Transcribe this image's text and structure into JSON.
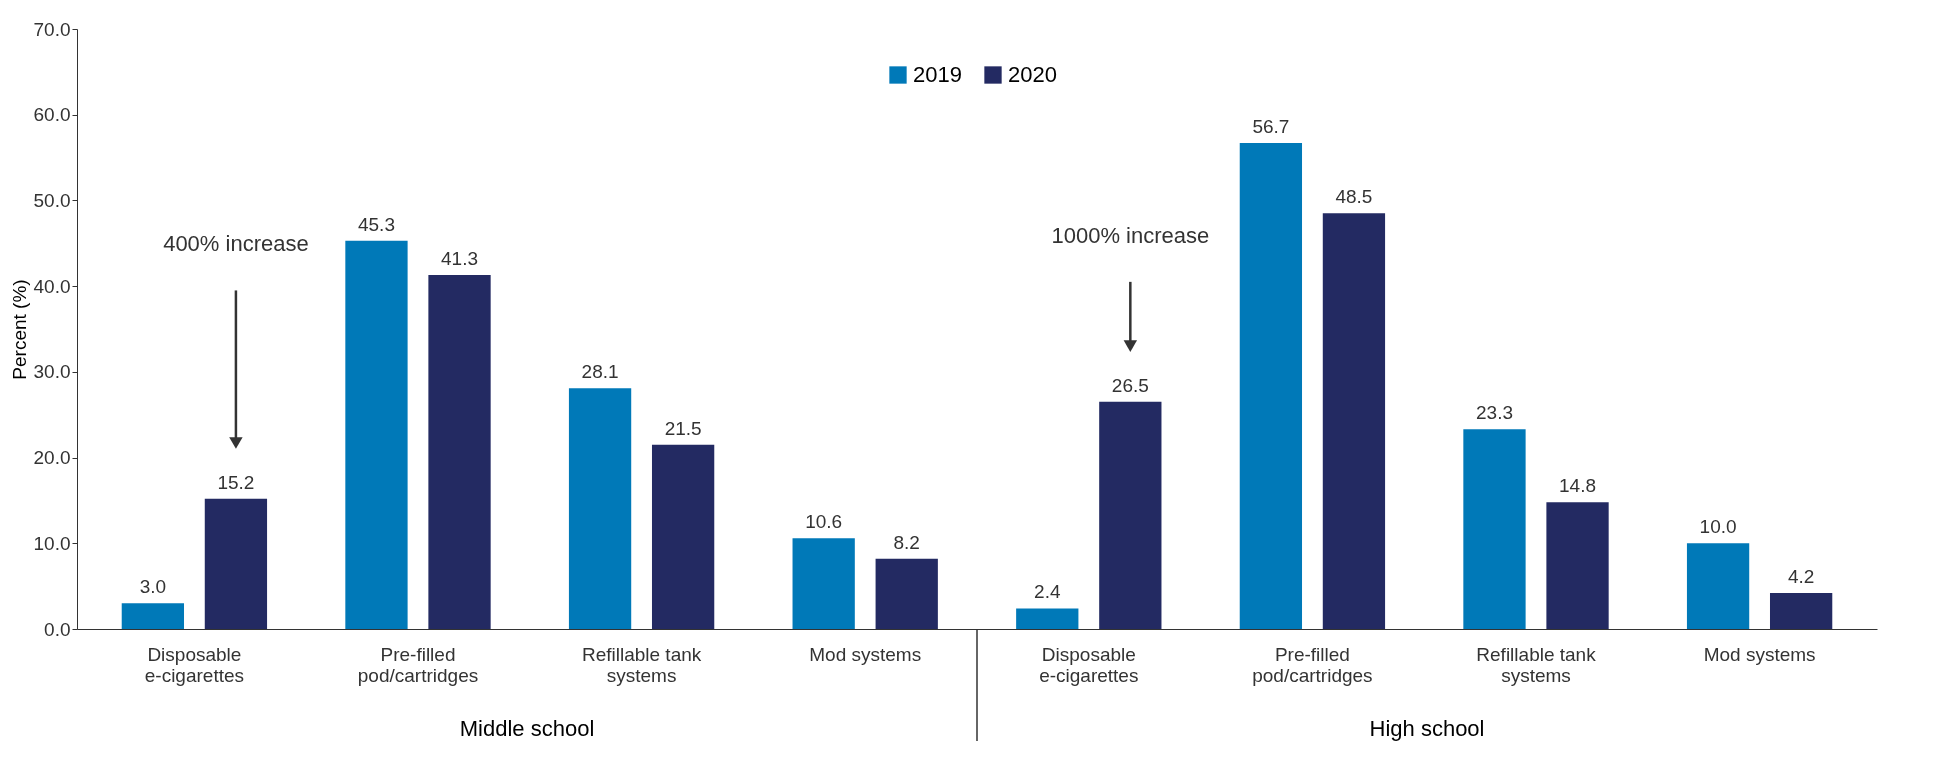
{
  "chart_data": {
    "type": "bar",
    "ylabel": "Percent (%)",
    "categories": [
      "Disposable e-cigarettes",
      "Pre-filled pod/cartridges",
      "Refillable tank systems",
      "Mod systems",
      "Disposable e-cigarettes",
      "Pre-filled pod/cartridges",
      "Refillable tank systems",
      "Mod systems"
    ],
    "series": [
      {
        "name": "2019",
        "color": "#0079b8",
        "values": [
          3.0,
          45.3,
          28.1,
          10.6,
          2.4,
          56.7,
          23.3,
          10.0
        ],
        "value_labels": [
          "3.0",
          "45.3",
          "28.1",
          "10.6",
          "2.4",
          "56.7",
          "23.3",
          "10.0"
        ]
      },
      {
        "name": "2020",
        "color": "#232a62",
        "values": [
          15.2,
          41.3,
          21.5,
          8.2,
          26.5,
          48.5,
          14.8,
          4.2
        ],
        "value_labels": [
          "15.2",
          "41.3",
          "21.5",
          "8.2",
          "26.5",
          "48.5",
          "14.8",
          "4.2"
        ]
      }
    ],
    "ylim": [
      0,
      70
    ],
    "yticks": [
      {
        "value": 0,
        "label": "0.0"
      },
      {
        "value": 10,
        "label": "10.0"
      },
      {
        "value": 20,
        "label": "20.0"
      },
      {
        "value": 30,
        "label": "30.0"
      },
      {
        "value": 40,
        "label": "40.0"
      },
      {
        "value": 50,
        "label": "50.0"
      },
      {
        "value": 60,
        "label": "60.0"
      },
      {
        "value": 70,
        "label": "70.0"
      }
    ],
    "grid": false,
    "legend": "top",
    "annotations": [
      "400% increase",
      "1000% increase",
      "Middle school",
      "High school"
    ]
  }
}
